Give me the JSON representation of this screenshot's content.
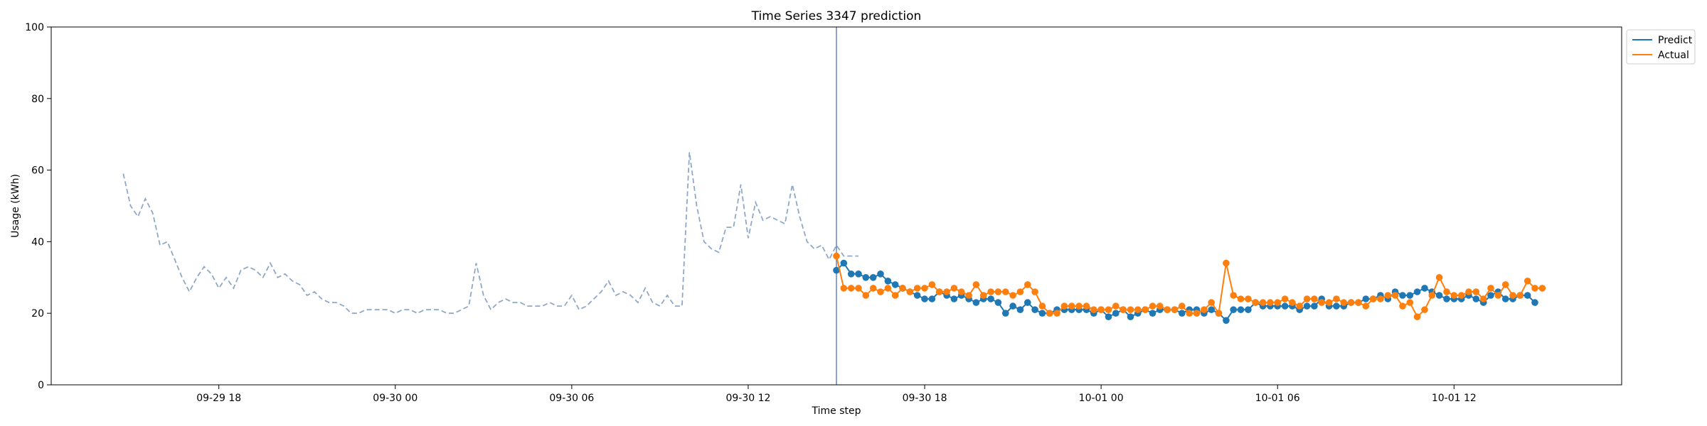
{
  "chart_data": {
    "type": "line",
    "title": "Time Series 3347 prediction",
    "xlabel": "Time step",
    "ylabel": "Usage (kWh)",
    "ylim": [
      0,
      100
    ],
    "yticks": [
      0,
      20,
      40,
      60,
      80,
      100
    ],
    "xlim": [
      "2023-09-29 12:18",
      "2023-10-01 17:42"
    ],
    "xticks": [
      {
        "t": "2023-09-29 18:00",
        "label": "09-29 18"
      },
      {
        "t": "2023-09-30 00:00",
        "label": "09-30 00"
      },
      {
        "t": "2023-09-30 06:00",
        "label": "09-30 06"
      },
      {
        "t": "2023-09-30 12:00",
        "label": "09-30 12"
      },
      {
        "t": "2023-09-30 18:00",
        "label": "09-30 18"
      },
      {
        "t": "2023-10-01 00:00",
        "label": "10-01 00"
      },
      {
        "t": "2023-10-01 06:00",
        "label": "10-01 06"
      },
      {
        "t": "2023-10-01 12:00",
        "label": "10-01 12"
      }
    ],
    "interval_minutes": 15,
    "forecast_start": "2023-09-30 15:00",
    "history": {
      "start": "2023-09-29 14:45",
      "style": "dashed",
      "values": [
        59,
        50,
        47,
        52,
        48,
        39,
        40,
        35,
        30,
        26,
        30,
        33,
        31,
        27,
        30,
        27,
        32,
        33,
        32,
        30,
        34,
        30,
        31,
        29,
        28,
        25,
        26,
        24,
        23,
        23,
        22,
        20,
        20,
        21,
        21,
        21,
        21,
        20,
        21,
        21,
        20,
        21,
        21,
        21,
        20,
        20,
        21,
        22,
        34,
        25,
        21,
        23,
        24,
        23,
        23,
        22,
        22,
        22,
        23,
        22,
        22,
        25,
        21,
        22,
        24,
        26,
        29,
        25,
        26,
        25,
        23,
        27,
        23,
        22,
        25,
        22,
        22,
        65,
        50,
        40,
        38,
        37,
        44,
        44,
        56,
        41,
        51,
        46,
        47,
        46,
        45,
        56,
        47,
        40,
        38,
        39,
        35,
        39,
        36,
        36,
        36
      ]
    },
    "series": [
      {
        "name": "Predict",
        "color": "#1f77b4",
        "start": "2023-09-30 15:00",
        "values": [
          32,
          34,
          31,
          31,
          30,
          30,
          31,
          29,
          28,
          27,
          26,
          25,
          24,
          24,
          26,
          25,
          24,
          25,
          24,
          23,
          24,
          24,
          23,
          20,
          22,
          21,
          23,
          21,
          20,
          20,
          21,
          21,
          21,
          21,
          21,
          20,
          21,
          19,
          20,
          21,
          19,
          20,
          21,
          20,
          21,
          21,
          21,
          20,
          21,
          21,
          20,
          21,
          20,
          18,
          21,
          21,
          21,
          23,
          22,
          22,
          22,
          22,
          22,
          21,
          22,
          22,
          24,
          22,
          22,
          22,
          23,
          23,
          24,
          24,
          25,
          24,
          26,
          25,
          25,
          26,
          27,
          26,
          25,
          24,
          24,
          24,
          25,
          24,
          23,
          25,
          26,
          24,
          24,
          25,
          25,
          23
        ]
      },
      {
        "name": "Actual",
        "color": "#ff7f0e",
        "start": "2023-09-30 15:00",
        "values": [
          36,
          27,
          27,
          27,
          25,
          27,
          26,
          27,
          25,
          27,
          26,
          27,
          27,
          28,
          26,
          26,
          27,
          26,
          25,
          28,
          25,
          26,
          26,
          26,
          25,
          26,
          28,
          26,
          22,
          20,
          20,
          22,
          22,
          22,
          22,
          21,
          21,
          21,
          22,
          21,
          21,
          21,
          21,
          22,
          22,
          21,
          21,
          22,
          20,
          20,
          21,
          23,
          20,
          34,
          25,
          24,
          24,
          23,
          23,
          23,
          23,
          24,
          23,
          22,
          24,
          24,
          23,
          23,
          24,
          23,
          23,
          23,
          22,
          24,
          24,
          25,
          25,
          22,
          23,
          19,
          21,
          25,
          30,
          26,
          25,
          25,
          26,
          26,
          24,
          27,
          25,
          28,
          25,
          25,
          29,
          27,
          27
        ]
      }
    ],
    "vline": {
      "t": "2023-09-30 15:00",
      "color": "#4f6fbf"
    },
    "legend": {
      "position": "outside-top-right"
    },
    "grid": false
  }
}
